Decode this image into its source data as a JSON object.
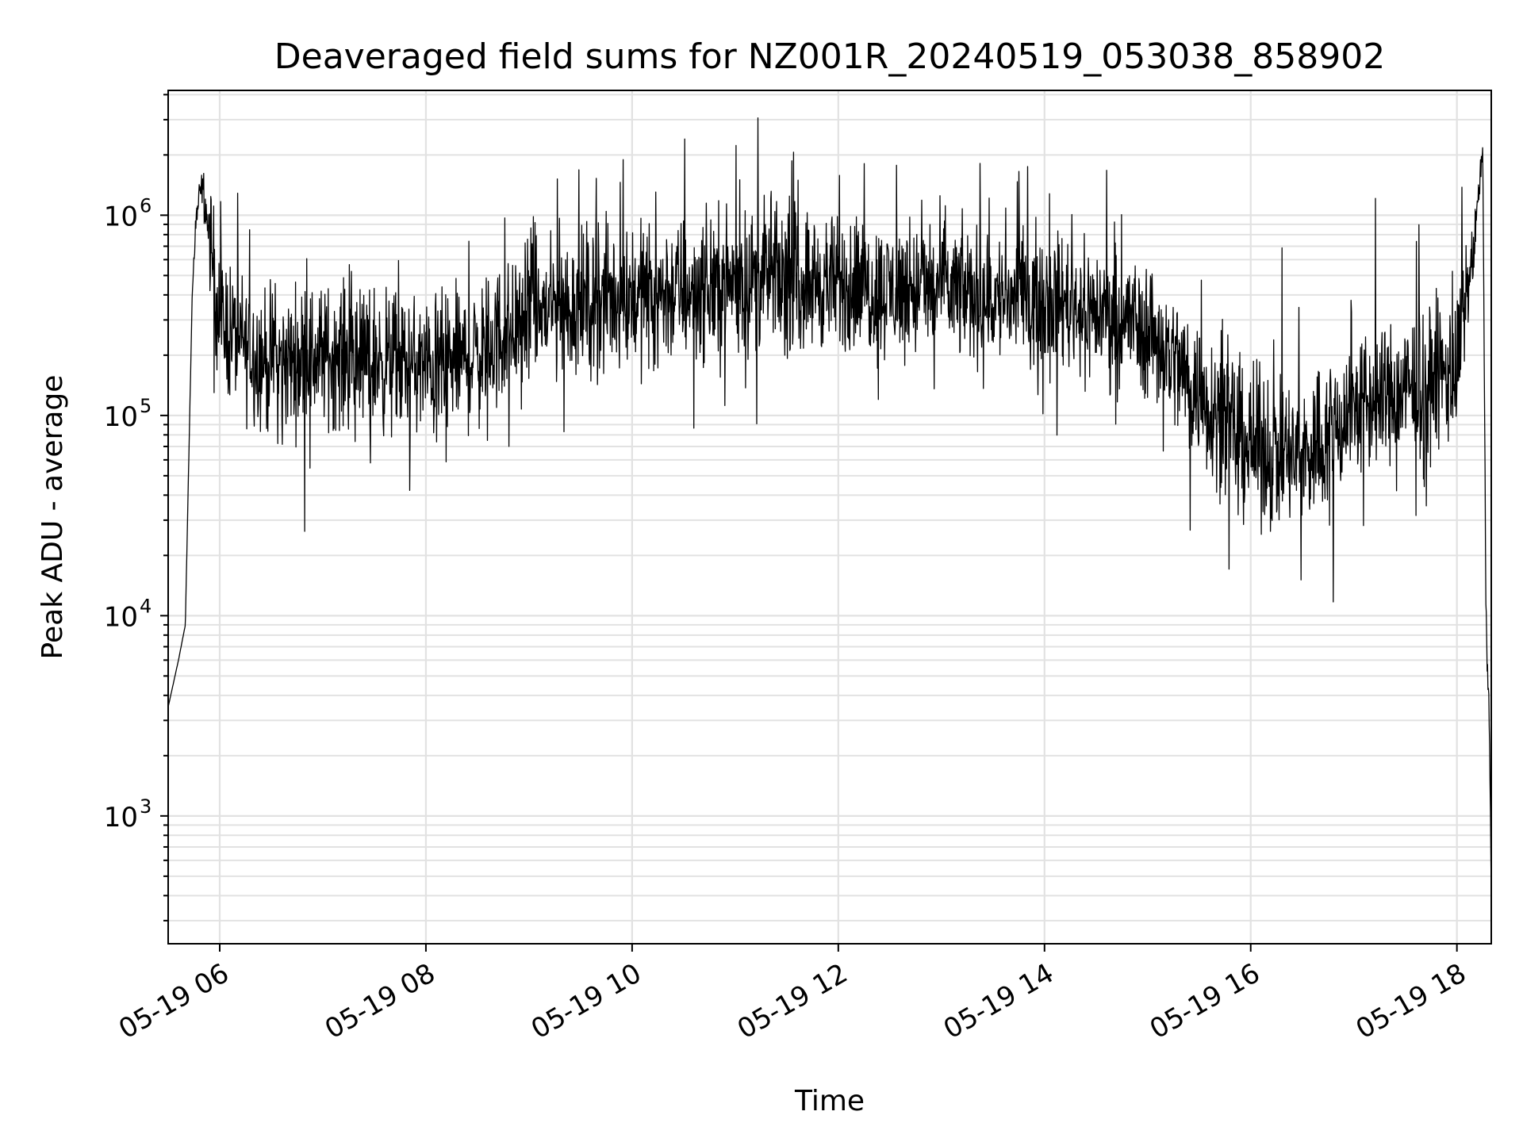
{
  "chart_data": {
    "type": "line",
    "title": "Deaveraged field sums for NZ001R_20240519_053038_858902",
    "xlabel": "Time",
    "ylabel": "Peak ADU - average",
    "yscale": "log",
    "ylim": [
      230,
      4200000
    ],
    "xlim": [
      "2024-05-19 05:30",
      "2024-05-19 18:20"
    ],
    "grid": true,
    "series_color": "#000000",
    "x_ticks": [
      {
        "value": "2024-05-19 06:00",
        "label": "05-19 06"
      },
      {
        "value": "2024-05-19 08:00",
        "label": "05-19 08"
      },
      {
        "value": "2024-05-19 10:00",
        "label": "05-19 10"
      },
      {
        "value": "2024-05-19 12:00",
        "label": "05-19 12"
      },
      {
        "value": "2024-05-19 14:00",
        "label": "05-19 14"
      },
      {
        "value": "2024-05-19 16:00",
        "label": "05-19 16"
      },
      {
        "value": "2024-05-19 18:00",
        "label": "05-19 18"
      }
    ],
    "y_ticks": [
      {
        "value": 1000,
        "base": "10",
        "exp": "3"
      },
      {
        "value": 10000,
        "base": "10",
        "exp": "4"
      },
      {
        "value": 100000,
        "base": "10",
        "exp": "5"
      },
      {
        "value": 1000000,
        "base": "10",
        "exp": "6"
      }
    ],
    "series": [
      {
        "x": [
          "2024-05-19 05:30",
          "2024-05-19 05:36",
          "2024-05-19 05:40",
          "2024-05-19 05:42",
          "2024-05-19 05:44",
          "2024-05-19 05:46",
          "2024-05-19 05:48",
          "2024-05-19 05:50",
          "2024-05-19 05:55",
          "2024-05-19 06:00",
          "2024-05-19 06:15",
          "2024-05-19 06:30",
          "2024-05-19 07:00",
          "2024-05-19 07:30",
          "2024-05-19 08:00",
          "2024-05-19 08:30",
          "2024-05-19 09:00",
          "2024-05-19 09:30",
          "2024-05-19 10:00",
          "2024-05-19 10:30",
          "2024-05-19 11:00",
          "2024-05-19 11:30",
          "2024-05-19 12:00",
          "2024-05-19 12:30",
          "2024-05-19 13:00",
          "2024-05-19 13:30",
          "2024-05-19 14:00",
          "2024-05-19 14:30",
          "2024-05-19 15:00",
          "2024-05-19 15:30",
          "2024-05-19 16:00",
          "2024-05-19 16:30",
          "2024-05-19 17:00",
          "2024-05-19 17:30",
          "2024-05-19 18:00",
          "2024-05-19 18:10",
          "2024-05-19 18:15",
          "2024-05-19 18:17",
          "2024-05-19 18:19",
          "2024-05-19 18:20"
        ],
        "y": [
          3500,
          6000,
          9000,
          60000,
          400000,
          900000,
          1200000,
          1400000,
          700000,
          300000,
          220000,
          180000,
          200000,
          190000,
          170000,
          200000,
          320000,
          360000,
          400000,
          420000,
          470000,
          500000,
          440000,
          420000,
          430000,
          380000,
          400000,
          330000,
          280000,
          130000,
          70000,
          60000,
          110000,
          130000,
          170000,
          700000,
          2200000,
          9000,
          2500,
          400
        ],
        "spread": [
          1,
          1,
          1,
          1,
          1,
          1.4,
          1.4,
          1.3,
          2.6,
          3.2,
          3.2,
          3.2,
          3.2,
          3.3,
          3.2,
          3.3,
          3.3,
          3.4,
          3.4,
          3.4,
          3.3,
          3.2,
          3.1,
          3.1,
          3.1,
          3.0,
          3.0,
          3.0,
          3.2,
          3.4,
          3.6,
          3.6,
          3.5,
          3.5,
          3.5,
          1.5,
          1.2,
          1.6,
          1.4,
          1
        ]
      }
    ]
  }
}
